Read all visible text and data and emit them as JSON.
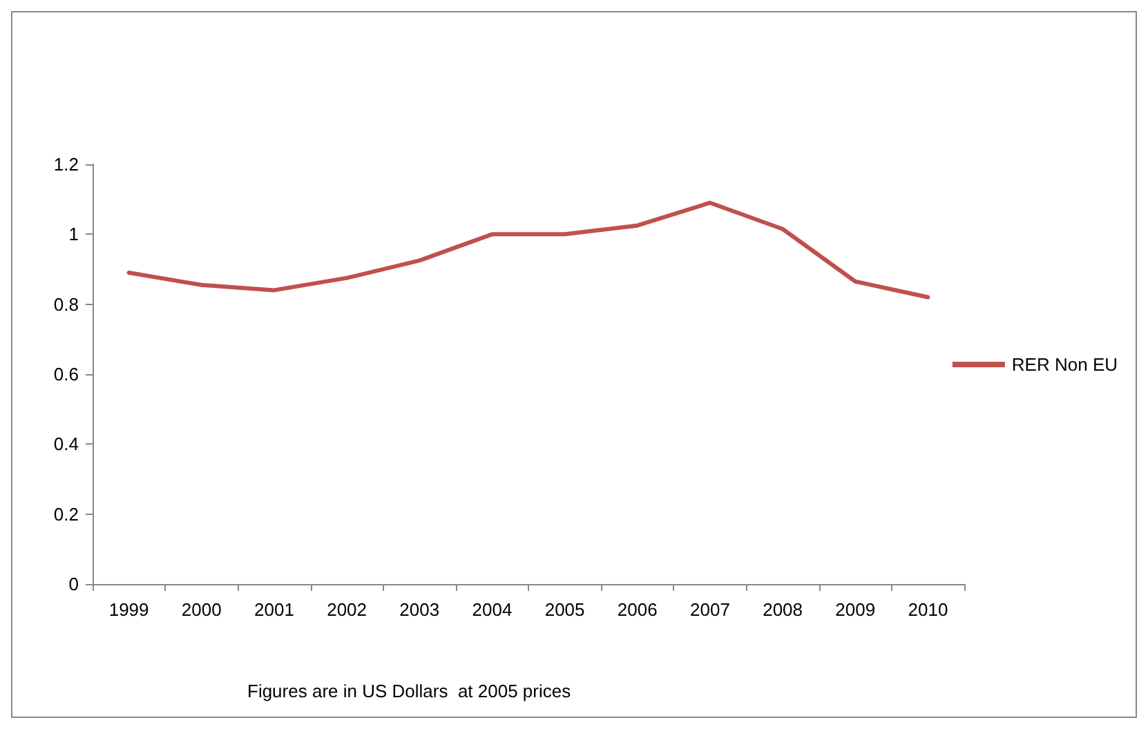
{
  "chart_data": {
    "type": "line",
    "categories": [
      "1999",
      "2000",
      "2001",
      "2002",
      "2003",
      "2004",
      "2005",
      "2006",
      "2007",
      "2008",
      "2009",
      "2010"
    ],
    "series": [
      {
        "name": "RER Non EU",
        "color": "#c0504d",
        "values": [
          0.89,
          0.855,
          0.84,
          0.875,
          0.925,
          1.0,
          1.0,
          1.025,
          1.09,
          1.015,
          0.865,
          0.82
        ]
      }
    ],
    "ylim": [
      0,
      1.2
    ],
    "yticks": [
      0,
      0.2,
      0.4,
      0.6,
      0.8,
      1,
      1.2
    ],
    "grid": false,
    "legend": "right",
    "marker": "none",
    "line_style": "solid",
    "annotations": [
      "Figures are in US Dollars  at 2005 prices"
    ]
  }
}
